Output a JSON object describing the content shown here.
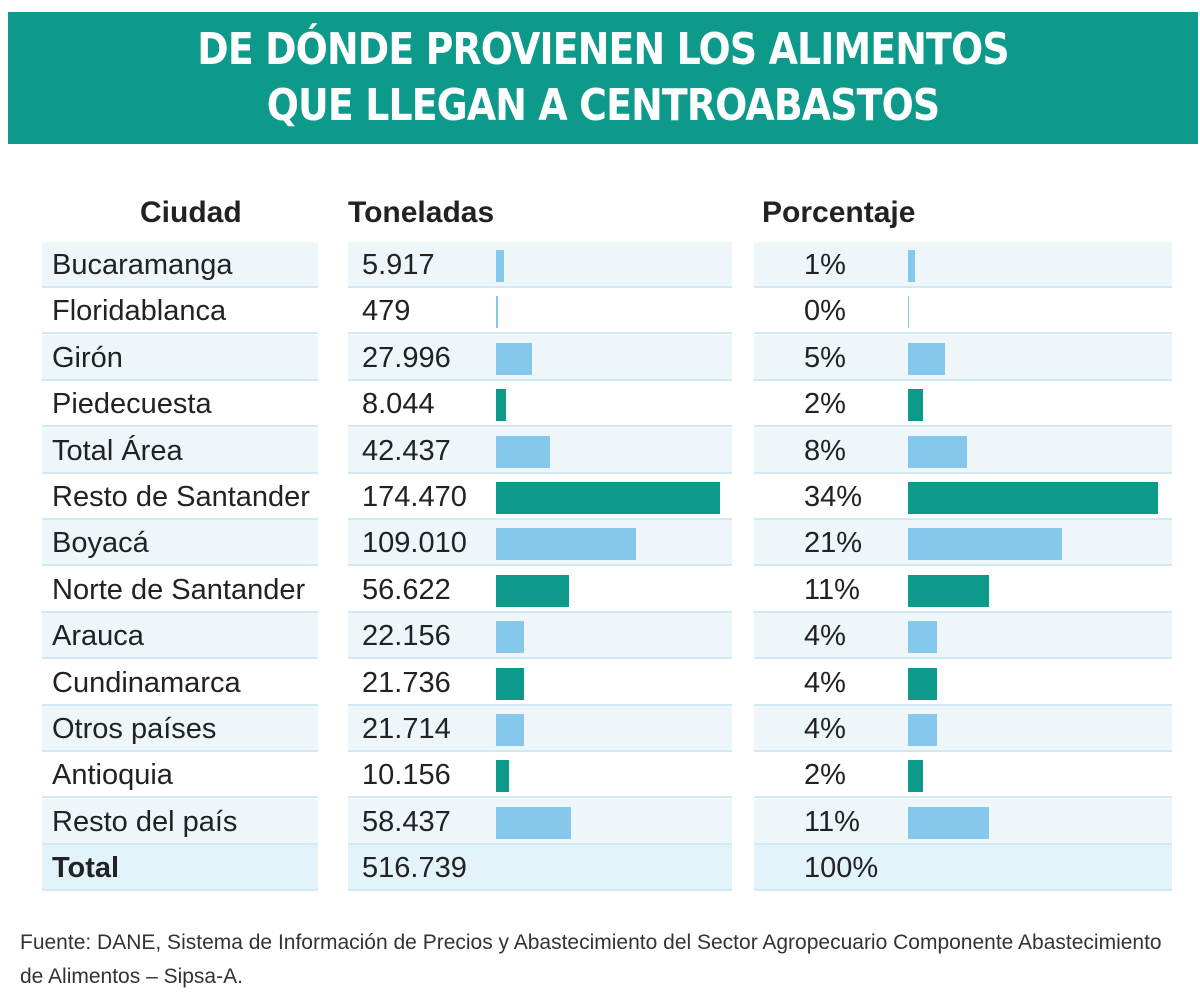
{
  "title_line1": "DE DÓNDE PROVIENEN LOS ALIMENTOS",
  "title_line2": "QUE LLEGAN A CENTROABASTOS",
  "headers": {
    "city": "Ciudad",
    "tons": "Toneladas",
    "pct": "Porcentaje"
  },
  "colors": {
    "banner": "#0d9a8b",
    "bar_teal": "#0d9a8b",
    "bar_light": "#86c8ec"
  },
  "chart_data": {
    "type": "bar",
    "title": "DE DÓNDE PROVIENEN LOS ALIMENTOS QUE LLEGAN A CENTROABASTOS",
    "categories": [
      "Bucaramanga",
      "Floridablanca",
      "Girón",
      "Piedecuesta",
      "Total Área",
      "Resto de Santander",
      "Boyacá",
      "Norte de Santander",
      "Arauca",
      "Cundinamarca",
      "Otros países",
      "Antioquia",
      "Resto del país"
    ],
    "series": [
      {
        "name": "Toneladas",
        "values": [
          5917,
          479,
          27996,
          8044,
          42437,
          174470,
          109010,
          56622,
          22156,
          21736,
          21714,
          10156,
          58437
        ]
      },
      {
        "name": "Porcentaje",
        "values": [
          1,
          0,
          5,
          2,
          8,
          34,
          21,
          11,
          4,
          4,
          4,
          2,
          11
        ]
      }
    ],
    "bar_colors": [
      "light",
      "light",
      "light",
      "teal",
      "light",
      "teal",
      "light",
      "teal",
      "light",
      "teal",
      "light",
      "teal",
      "light"
    ],
    "rows": [
      {
        "city": "Bucaramanga",
        "tons_label": "5.917",
        "pct_label": "1%"
      },
      {
        "city": "Floridablanca",
        "tons_label": "479",
        "pct_label": "0%"
      },
      {
        "city": "Girón",
        "tons_label": "27.996",
        "pct_label": "5%"
      },
      {
        "city": "Piedecuesta",
        "tons_label": "8.044",
        "pct_label": "2%"
      },
      {
        "city": "Total Área",
        "tons_label": "42.437",
        "pct_label": "8%"
      },
      {
        "city": "Resto de Santander",
        "tons_label": "174.470",
        "pct_label": "34%"
      },
      {
        "city": "Boyacá",
        "tons_label": "109.010",
        "pct_label": "21%"
      },
      {
        "city": "Norte de Santander",
        "tons_label": "56.622",
        "pct_label": "11%"
      },
      {
        "city": "Arauca",
        "tons_label": "22.156",
        "pct_label": "4%"
      },
      {
        "city": "Cundinamarca",
        "tons_label": "21.736",
        "pct_label": "4%"
      },
      {
        "city": "Otros países",
        "tons_label": "21.714",
        "pct_label": "4%"
      },
      {
        "city": "Antioquia",
        "tons_label": "10.156",
        "pct_label": "2%"
      },
      {
        "city": "Resto del país",
        "tons_label": "58.437",
        "pct_label": "11%"
      }
    ],
    "total": {
      "city": "Total",
      "tons_label": "516.739",
      "pct_label": "100%"
    }
  },
  "source_text": "Fuente: DANE, Sistema de Información de Precios y Abastecimiento del Sector Agropecuario Componente Abastecimiento de Alimentos – Sipsa-A."
}
